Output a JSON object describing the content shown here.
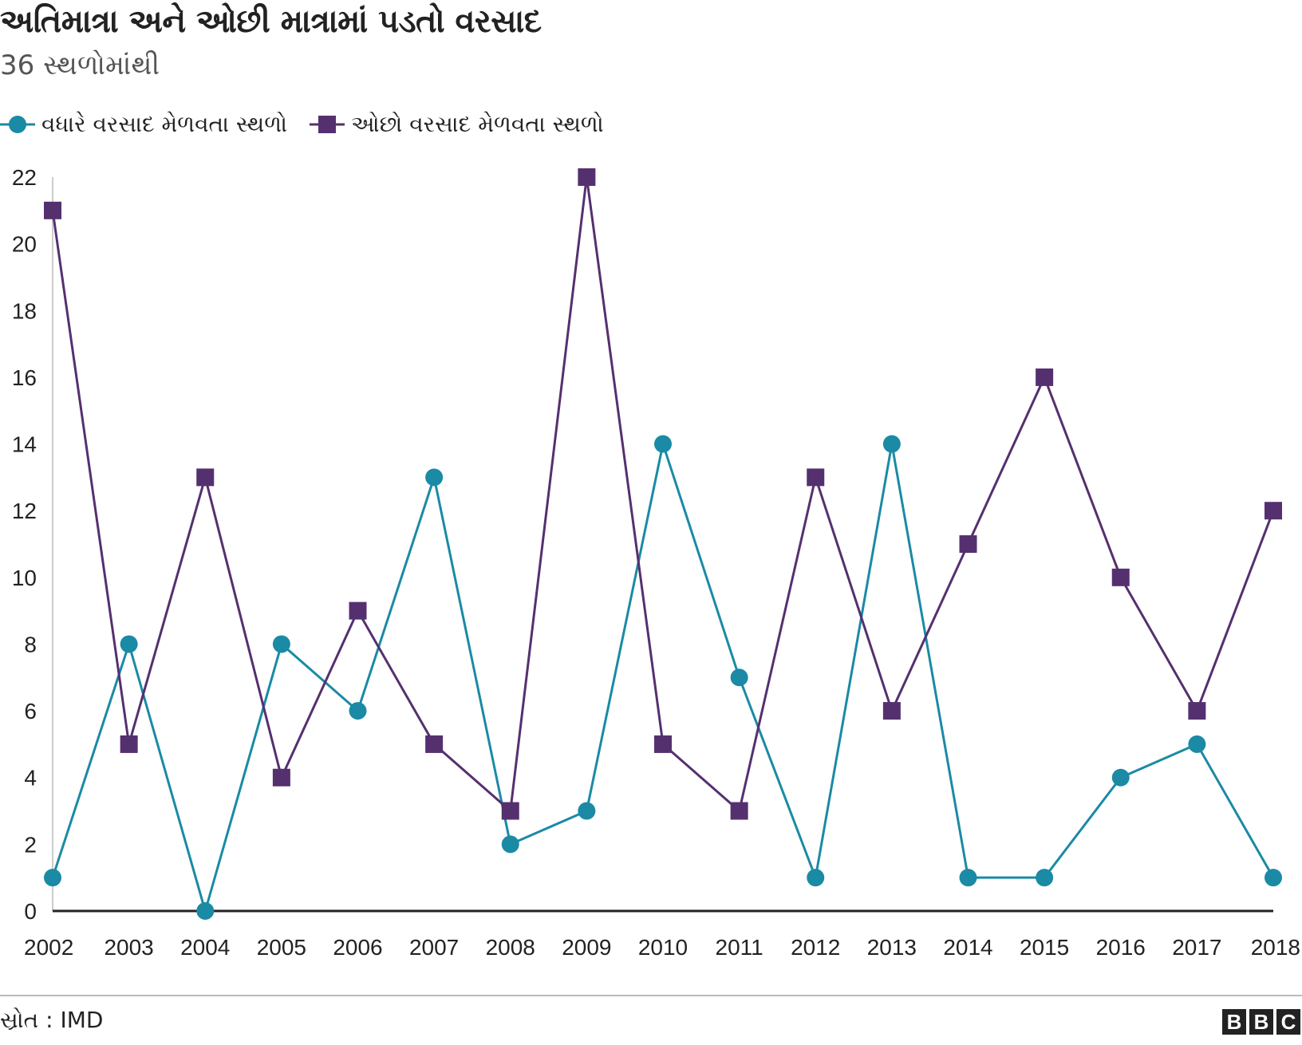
{
  "header": {
    "title": "અતિમાત્રા અને ઓછી માત્રામાં પડતો વરસાદ",
    "subtitle": "36 સ્થળોમાંથી"
  },
  "legend": {
    "items": [
      {
        "label": "વધારે વરસાદ મેળવતા સ્થળો",
        "color": "#1a8aa5",
        "marker": "circle"
      },
      {
        "label": "ઓછો વરસાદ મેળવતા સ્થળો",
        "color": "#55306f",
        "marker": "square"
      }
    ]
  },
  "chart_data": {
    "type": "line",
    "title": "અતિમાત્રા અને ઓછી માત્રામાં પડતો વરસાદ",
    "subtitle": "36 સ્થળોમાંથી",
    "x": [
      "2002",
      "2003",
      "2004",
      "2005",
      "2006",
      "2007",
      "2008",
      "2009",
      "2010",
      "2011",
      "2012",
      "2013",
      "2014",
      "2015",
      "2016",
      "2017",
      "2018"
    ],
    "series": [
      {
        "name": "વધારે વરસાદ મેળવતા સ્થળો",
        "color": "#1a8aa5",
        "marker": "circle",
        "values": [
          1,
          8,
          0,
          8,
          6,
          13,
          2,
          3,
          14,
          7,
          1,
          14,
          1,
          1,
          4,
          5,
          1
        ]
      },
      {
        "name": "ઓછો વરસાદ મેળવતા સ્થળો",
        "color": "#55306f",
        "marker": "square",
        "values": [
          21,
          5,
          13,
          4,
          9,
          5,
          3,
          22,
          5,
          3,
          13,
          6,
          11,
          16,
          10,
          6,
          12
        ]
      }
    ],
    "yticks": [
      0,
      2,
      4,
      6,
      8,
      10,
      12,
      14,
      16,
      18,
      20,
      22
    ],
    "ylim": [
      0,
      22
    ],
    "grid": false,
    "legend_position": "top-left"
  },
  "footer": {
    "source": "સ્રોત : IMD",
    "logo": [
      "B",
      "B",
      "C"
    ]
  }
}
